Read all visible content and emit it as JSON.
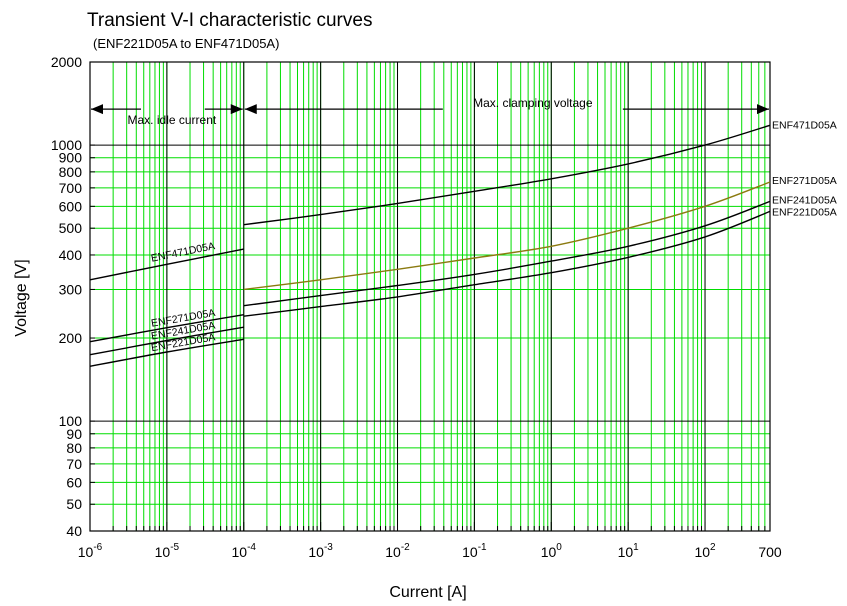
{
  "chart_data": {
    "type": "line",
    "title": "Transient V-I characteristic curves",
    "subtitle": "(ENF221D05A to ENF471D05A)",
    "xlabel": "Current [A]",
    "ylabel": "Voltage [V]",
    "xscale": "log",
    "yscale": "log",
    "xlim": [
      1e-06,
      700
    ],
    "ylim": [
      40,
      2000
    ],
    "grid": true,
    "grid_color": "#00dd00",
    "x_ticks": [
      {
        "value": 1e-06,
        "base": "10",
        "exp": "-6"
      },
      {
        "value": 1e-05,
        "base": "10",
        "exp": "-5"
      },
      {
        "value": 0.0001,
        "base": "10",
        "exp": "-4"
      },
      {
        "value": 0.001,
        "base": "10",
        "exp": "-3"
      },
      {
        "value": 0.01,
        "base": "10",
        "exp": "-2"
      },
      {
        "value": 0.1,
        "base": "10",
        "exp": "-1"
      },
      {
        "value": 1,
        "base": "10",
        "exp": "0"
      },
      {
        "value": 10,
        "base": "10",
        "exp": "1"
      },
      {
        "value": 100,
        "base": "10",
        "exp": "2"
      },
      {
        "value": 700,
        "base": "700",
        "exp": ""
      }
    ],
    "y_ticks": [
      {
        "value": 40,
        "label": "40"
      },
      {
        "value": 50,
        "label": "50"
      },
      {
        "value": 60,
        "label": "60"
      },
      {
        "value": 70,
        "label": "70"
      },
      {
        "value": 80,
        "label": "80"
      },
      {
        "value": 90,
        "label": "90"
      },
      {
        "value": 100,
        "label": "100"
      },
      {
        "value": 200,
        "label": "200"
      },
      {
        "value": 300,
        "label": "300"
      },
      {
        "value": 400,
        "label": "400"
      },
      {
        "value": 500,
        "label": "500"
      },
      {
        "value": 600,
        "label": "600"
      },
      {
        "value": 700,
        "label": "700"
      },
      {
        "value": 800,
        "label": "800"
      },
      {
        "value": 900,
        "label": "900"
      },
      {
        "value": 1000,
        "label": "1000"
      },
      {
        "value": 2000,
        "label": "2000"
      }
    ],
    "annotations": [
      {
        "text": "Max. idle current",
        "x_from": 1e-06,
        "x_to": 0.0001,
        "y": 1350
      },
      {
        "text": "Max. clamping voltage",
        "x_from": 0.0001,
        "x_to": 700,
        "y": 1350
      }
    ],
    "idle_series": [
      {
        "name": "ENF471D05A",
        "color": "#000000",
        "x": [
          1e-06,
          1e-05,
          0.0001
        ],
        "y": [
          325,
          370,
          420
        ]
      },
      {
        "name": "ENF271D05A",
        "color": "#000000",
        "x": [
          1e-06,
          1e-05,
          0.0001
        ],
        "y": [
          194,
          218,
          243
        ]
      },
      {
        "name": "ENF241D05A",
        "color": "#000000",
        "x": [
          1e-06,
          1e-05,
          0.0001
        ],
        "y": [
          174,
          196,
          219
        ]
      },
      {
        "name": "ENF221D05A",
        "color": "#000000",
        "x": [
          1e-06,
          1e-05,
          0.0001
        ],
        "y": [
          158,
          178,
          198
        ]
      }
    ],
    "clamp_series": [
      {
        "name": "ENF471D05A",
        "color": "#000000",
        "x": [
          0.0001,
          0.001,
          0.01,
          0.1,
          1,
          10,
          100,
          700
        ],
        "y": [
          515,
          560,
          615,
          680,
          755,
          855,
          1000,
          1180
        ]
      },
      {
        "name": "ENF271D05A",
        "color": "#8b7a10",
        "x": [
          0.0001,
          0.001,
          0.01,
          0.1,
          1,
          10,
          100,
          700
        ],
        "y": [
          300,
          325,
          355,
          390,
          430,
          500,
          600,
          735
        ]
      },
      {
        "name": "ENF241D05A",
        "color": "#000000",
        "x": [
          0.0001,
          0.001,
          0.01,
          0.1,
          1,
          10,
          100,
          700
        ],
        "y": [
          262,
          285,
          310,
          340,
          380,
          430,
          510,
          625
        ]
      },
      {
        "name": "ENF221D05A",
        "color": "#000000",
        "x": [
          0.0001,
          0.001,
          0.01,
          0.1,
          1,
          10,
          100,
          700
        ],
        "y": [
          240,
          260,
          282,
          312,
          345,
          392,
          465,
          575
        ]
      }
    ]
  }
}
